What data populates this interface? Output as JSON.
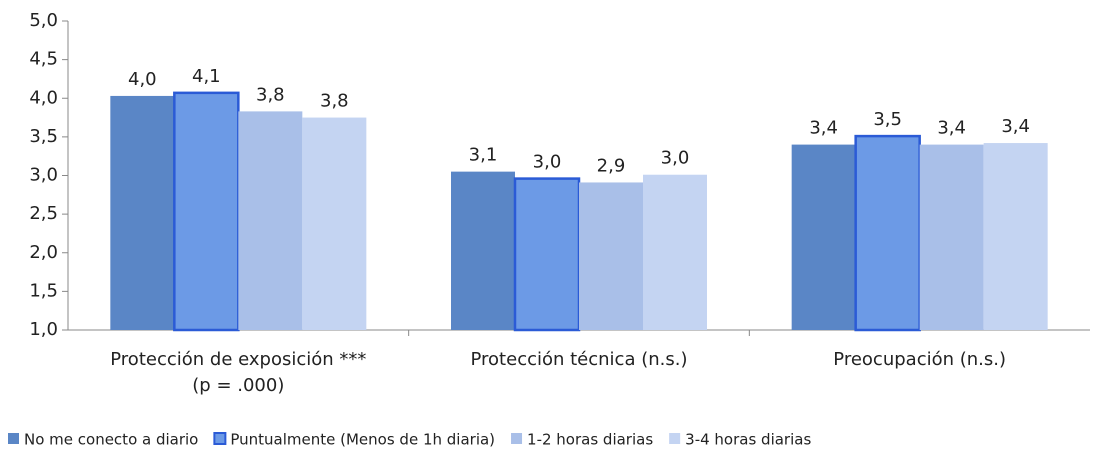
{
  "chart_data": {
    "type": "bar",
    "categories": [
      [
        "Protección de exposición   ***",
        "(p = .000)"
      ],
      [
        "Protección técnica (n.s.)"
      ],
      [
        "Preocupación (n.s.)"
      ]
    ],
    "series": [
      {
        "name": "No me conecto a diario",
        "color": "#5a86c6",
        "values": [
          4.03,
          3.05,
          3.4
        ],
        "value_labels": [
          "4,0",
          "3,1",
          "3,4"
        ]
      },
      {
        "name": "Puntualmente (Menos de 1h diaria)",
        "color": "#6c9ae6",
        "values": [
          4.07,
          2.96,
          3.51
        ],
        "value_labels": [
          "4,1",
          "3,0",
          "3,5"
        ]
      },
      {
        "name": "1-2 horas diarias",
        "color": "#a9bfe8",
        "values": [
          3.83,
          2.91,
          3.4
        ],
        "value_labels": [
          "3,8",
          "2,9",
          "3,4"
        ]
      },
      {
        "name": "3-4 horas diarias",
        "color": "#c4d4f2",
        "values": [
          3.75,
          3.01,
          3.42
        ],
        "value_labels": [
          "3,8",
          "3,0",
          "3,4"
        ]
      }
    ],
    "ylim": [
      1,
      5
    ],
    "yticks": [
      {
        "value": 1,
        "label": "1,0"
      },
      {
        "value": 1.5,
        "label": "1,5"
      },
      {
        "value": 2,
        "label": "2,0"
      },
      {
        "value": 2.5,
        "label": "2,5"
      },
      {
        "value": 3,
        "label": "3,0"
      },
      {
        "value": 3.5,
        "label": "3,5"
      },
      {
        "value": 4,
        "label": "4,0"
      },
      {
        "value": 4.5,
        "label": "4,5"
      },
      {
        "value": 5,
        "label": "5,0"
      }
    ],
    "legend": "bottom"
  }
}
